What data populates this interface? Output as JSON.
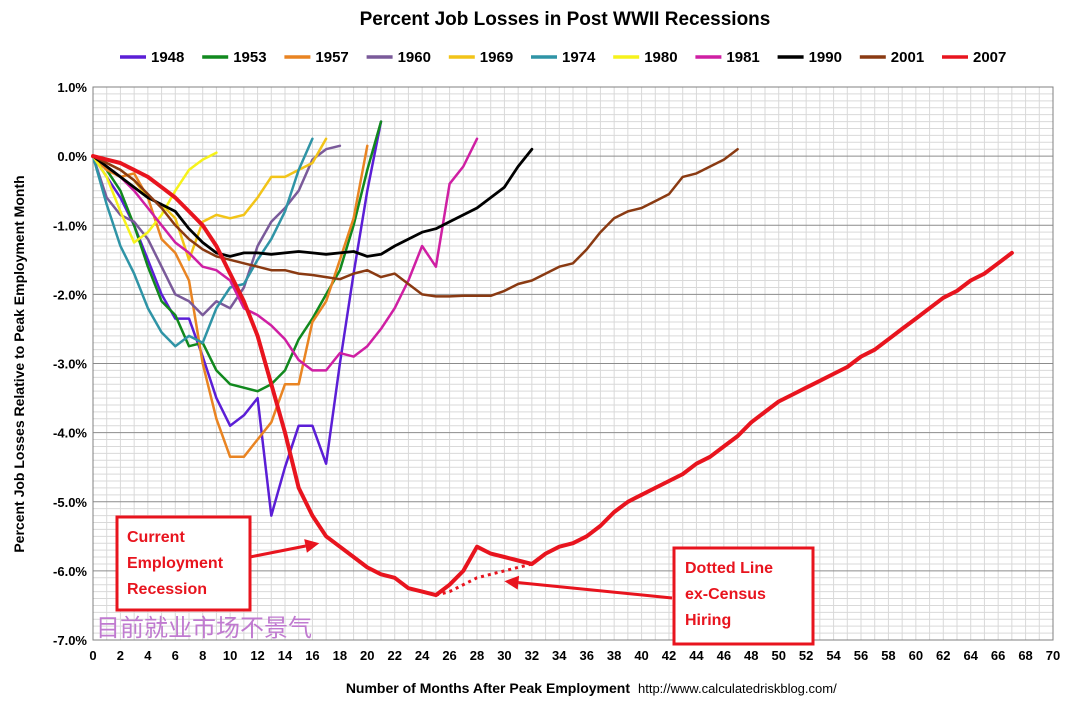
{
  "chart_data": {
    "type": "line",
    "title": "Percent Job Losses in Post WWII Recessions",
    "xlabel": "Number of Months After Peak Employment",
    "ylabel": "Percent Job Losses Relative to Peak Employment Month",
    "source": "http://www.calculatedriskblog.com/",
    "xlim": [
      0,
      70
    ],
    "ylim": [
      -7.0,
      1.0
    ],
    "x_ticks": [
      0,
      2,
      4,
      6,
      8,
      10,
      12,
      14,
      16,
      18,
      20,
      22,
      24,
      26,
      28,
      30,
      32,
      34,
      36,
      38,
      40,
      42,
      44,
      46,
      48,
      50,
      52,
      54,
      56,
      58,
      60,
      62,
      64,
      66,
      68,
      70
    ],
    "y_ticks": [
      1.0,
      0.0,
      -1.0,
      -2.0,
      -3.0,
      -4.0,
      -5.0,
      -6.0,
      -7.0
    ],
    "y_tick_labels": [
      "1.0%",
      "0.0%",
      "-1.0%",
      "-2.0%",
      "-3.0%",
      "-4.0%",
      "-5.0%",
      "-6.0%",
      "-7.0%"
    ],
    "grid": true,
    "legend_position": "top",
    "series": [
      {
        "name": "1948",
        "color": "#5b1ed6",
        "width": 2.5,
        "values": [
          0,
          -0.3,
          -0.6,
          -1.0,
          -1.5,
          -2.0,
          -2.35,
          -2.35,
          -2.9,
          -3.5,
          -3.9,
          -3.75,
          -3.5,
          -5.2,
          -4.5,
          -3.9,
          -3.9,
          -4.45,
          -3.0,
          -1.7,
          -0.5,
          0.5
        ]
      },
      {
        "name": "1953",
        "color": "#11891e",
        "width": 2.5,
        "values": [
          0,
          -0.2,
          -0.5,
          -1.0,
          -1.6,
          -2.1,
          -2.3,
          -2.75,
          -2.7,
          -3.1,
          -3.3,
          -3.35,
          -3.4,
          -3.3,
          -3.1,
          -2.65,
          -2.35,
          -2.0,
          -1.65,
          -1.0,
          -0.2,
          0.5
        ]
      },
      {
        "name": "1957",
        "color": "#e98422",
        "width": 2.5,
        "values": [
          0,
          -0.2,
          -0.3,
          -0.25,
          -0.6,
          -1.2,
          -1.4,
          -1.8,
          -3.0,
          -3.8,
          -4.35,
          -4.35,
          -4.1,
          -3.85,
          -3.3,
          -3.3,
          -2.4,
          -2.1,
          -1.5,
          -0.9,
          0.15
        ]
      },
      {
        "name": "1960",
        "color": "#7a5a9a",
        "width": 2.5,
        "values": [
          0,
          -0.6,
          -0.85,
          -0.95,
          -1.2,
          -1.6,
          -2.0,
          -2.1,
          -2.3,
          -2.1,
          -2.2,
          -1.9,
          -1.3,
          -0.95,
          -0.75,
          -0.5,
          -0.05,
          0.1,
          0.15
        ]
      },
      {
        "name": "1969",
        "color": "#f2c418",
        "width": 2.5,
        "values": [
          0,
          -0.1,
          -0.2,
          -0.35,
          -0.6,
          -0.7,
          -0.9,
          -1.5,
          -0.95,
          -0.85,
          -0.9,
          -0.85,
          -0.6,
          -0.3,
          -0.3,
          -0.2,
          -0.1,
          0.25
        ]
      },
      {
        "name": "1974",
        "color": "#2f94a6",
        "width": 2.5,
        "values": [
          0,
          -0.7,
          -1.3,
          -1.7,
          -2.2,
          -2.55,
          -2.75,
          -2.6,
          -2.7,
          -2.2,
          -1.9,
          -1.85,
          -1.5,
          -1.2,
          -0.8,
          -0.2,
          0.25
        ]
      },
      {
        "name": "1980",
        "color": "#f6f21b",
        "width": 2.5,
        "values": [
          0,
          -0.3,
          -0.8,
          -1.25,
          -1.1,
          -0.85,
          -0.5,
          -0.2,
          -0.05,
          0.05
        ]
      },
      {
        "name": "1981",
        "color": "#cf1fa3",
        "width": 2.5,
        "values": [
          0,
          -0.15,
          -0.3,
          -0.5,
          -0.75,
          -1.0,
          -1.25,
          -1.4,
          -1.6,
          -1.65,
          -1.8,
          -2.2,
          -2.3,
          -2.45,
          -2.65,
          -2.95,
          -3.1,
          -3.1,
          -2.85,
          -2.9,
          -2.75,
          -2.5,
          -2.2,
          -1.8,
          -1.3,
          -1.6,
          -0.4,
          -0.15,
          0.25
        ]
      },
      {
        "name": "1990",
        "color": "#000000",
        "width": 2.8,
        "values": [
          0,
          -0.15,
          -0.3,
          -0.45,
          -0.6,
          -0.7,
          -0.8,
          -1.05,
          -1.25,
          -1.4,
          -1.45,
          -1.4,
          -1.4,
          -1.42,
          -1.4,
          -1.38,
          -1.4,
          -1.42,
          -1.4,
          -1.38,
          -1.45,
          -1.42,
          -1.3,
          -1.2,
          -1.1,
          -1.05,
          -0.95,
          -0.85,
          -0.75,
          -0.6,
          -0.45,
          -0.15,
          0.1
        ]
      },
      {
        "name": "2001",
        "color": "#8a3a12",
        "width": 2.5,
        "values": [
          0,
          -0.1,
          -0.2,
          -0.35,
          -0.55,
          -0.75,
          -1.0,
          -1.2,
          -1.35,
          -1.45,
          -1.5,
          -1.55,
          -1.6,
          -1.65,
          -1.65,
          -1.7,
          -1.72,
          -1.75,
          -1.78,
          -1.7,
          -1.65,
          -1.75,
          -1.7,
          -1.85,
          -2.0,
          -2.03,
          -2.03,
          -2.02,
          -2.02,
          -2.02,
          -1.95,
          -1.85,
          -1.8,
          -1.7,
          -1.6,
          -1.55,
          -1.35,
          -1.1,
          -0.9,
          -0.8,
          -0.75,
          -0.65,
          -0.55,
          -0.3,
          -0.25,
          -0.15,
          -0.05,
          0.1
        ]
      },
      {
        "name": "2007",
        "color": "#e8141e",
        "width": 4,
        "values": [
          0,
          -0.05,
          -0.1,
          -0.2,
          -0.3,
          -0.45,
          -0.6,
          -0.8,
          -1.0,
          -1.3,
          -1.7,
          -2.1,
          -2.6,
          -3.3,
          -4.0,
          -4.8,
          -5.2,
          -5.5,
          -5.65,
          -5.8,
          -5.95,
          -6.05,
          -6.1,
          -6.25,
          -6.3,
          -6.35,
          -6.2,
          -6.0,
          -5.65,
          -5.75,
          -5.8,
          -5.85,
          -5.9,
          -5.75,
          -5.65,
          -5.6,
          -5.5,
          -5.35,
          -5.15,
          -5.0,
          -4.9,
          -4.8,
          -4.7,
          -4.6,
          -4.45,
          -4.35,
          -4.2,
          -4.05,
          -3.85,
          -3.7,
          -3.55,
          -3.45,
          -3.35,
          -3.25,
          -3.15,
          -3.05,
          -2.9,
          -2.8,
          -2.65,
          -2.5,
          -2.35,
          -2.2,
          -2.05,
          -1.95,
          -1.8,
          -1.7,
          -1.55,
          -1.4
        ]
      }
    ],
    "dotted_series": {
      "for": "2007",
      "color": "#e8141e",
      "points": [
        [
          25,
          -6.35
        ],
        [
          26,
          -6.3
        ],
        [
          27,
          -6.2
        ],
        [
          28,
          -6.1
        ],
        [
          29,
          -6.05
        ],
        [
          30,
          -6.0
        ],
        [
          31,
          -5.95
        ],
        [
          32,
          -5.9
        ]
      ]
    },
    "annotations": [
      {
        "lines": [
          "Current",
          "Employment",
          "Recession"
        ],
        "arrow_to": [
          16.5,
          -5.6
        ]
      },
      {
        "lines": [
          "Dotted  Line",
          "ex-Census",
          "Hiring"
        ],
        "arrow_to": [
          30,
          -6.15
        ]
      }
    ],
    "watermark": "目前就业市场不景气"
  }
}
